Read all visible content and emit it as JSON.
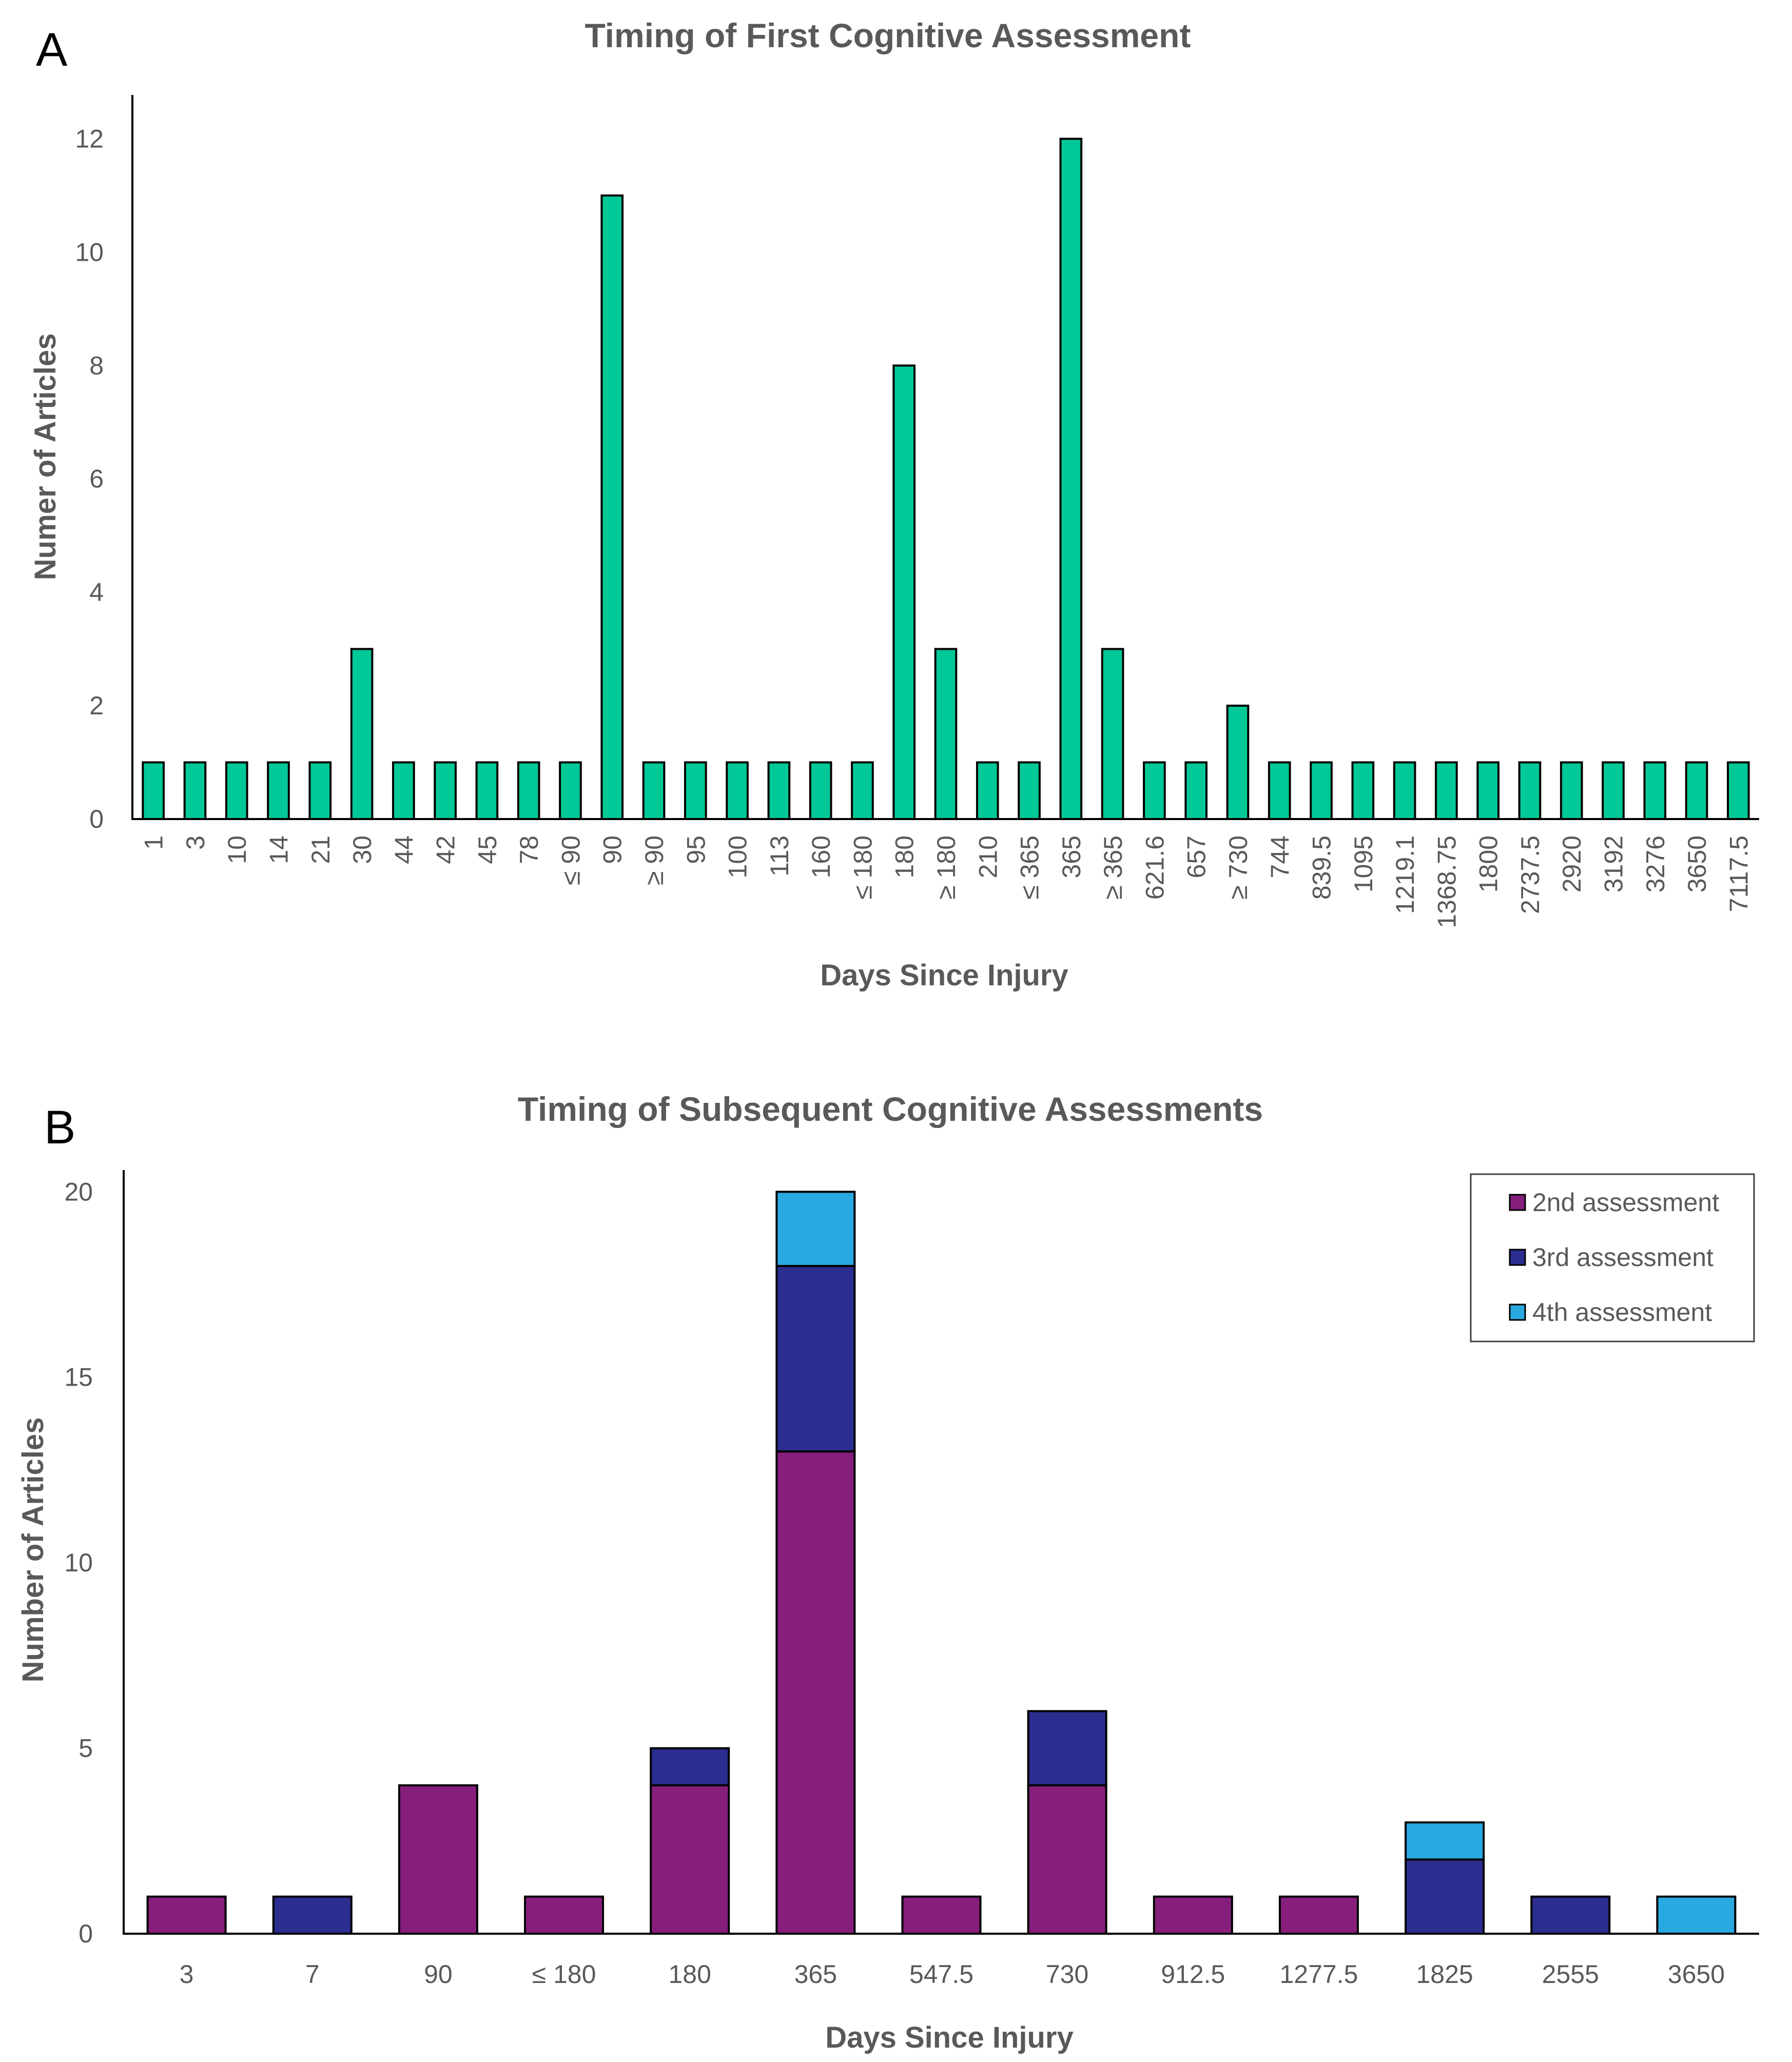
{
  "colors": {
    "panel_a_bar": "#00C896",
    "second_assessment": "#861F7C",
    "third_assessment": "#2B2D8F",
    "fourth_assessment": "#29A9E0",
    "text": "#595959"
  },
  "chart_data": [
    {
      "panel_label": "A",
      "type": "bar",
      "title": "Timing of First Cognitive Assessment",
      "xlabel": "Days Since Injury",
      "ylabel": "Numer of Articles",
      "ylim": [
        0,
        13
      ],
      "yticks": [
        0,
        2,
        4,
        6,
        8,
        10,
        12
      ],
      "categories": [
        "1",
        "3",
        "10",
        "14",
        "21",
        "30",
        "44",
        "42",
        "45",
        "78",
        "≤ 90",
        "90",
        "≥ 90",
        "95",
        "100",
        "113",
        "160",
        "≤ 180",
        "180",
        "≥ 180",
        "210",
        "≤ 365",
        "365",
        "≥ 365",
        "621.6",
        "657",
        "≥ 730",
        "744",
        "839.5",
        "1095",
        "1219.1",
        "1368.75",
        "1800",
        "2737.5",
        "2920",
        "3192",
        "3276",
        "3650",
        "7117.5"
      ],
      "values": [
        1,
        1,
        1,
        1,
        1,
        3,
        1,
        1,
        1,
        1,
        1,
        11,
        1,
        1,
        1,
        1,
        1,
        1,
        8,
        3,
        1,
        1,
        12,
        3,
        1,
        1,
        2,
        1,
        1,
        1,
        1,
        1,
        1,
        1,
        1,
        1,
        1,
        1,
        1
      ],
      "grid": false
    },
    {
      "panel_label": "B",
      "type": "bar",
      "stacked": true,
      "title": "Timing of Subsequent Cognitive Assessments",
      "xlabel": "Days Since Injury",
      "ylabel": "Number of Articles",
      "ylim": [
        0,
        21
      ],
      "yticks": [
        0,
        5,
        10,
        15,
        20
      ],
      "categories": [
        "3",
        "7",
        "90",
        "≤ 180",
        "180",
        "365",
        "547.5",
        "730",
        "912.5",
        "1277.5",
        "1825",
        "2555",
        "3650"
      ],
      "series": [
        {
          "name": "2nd assessment",
          "values": [
            1,
            0,
            4,
            1,
            4,
            13,
            1,
            4,
            1,
            1,
            0,
            0,
            0
          ]
        },
        {
          "name": "3rd assessment",
          "values": [
            0,
            1,
            0,
            0,
            1,
            5,
            0,
            2,
            0,
            0,
            2,
            1,
            0
          ]
        },
        {
          "name": "4th assessment",
          "values": [
            0,
            0,
            0,
            0,
            0,
            2,
            0,
            0,
            0,
            0,
            1,
            0,
            1
          ]
        }
      ],
      "legend_position": "top-right",
      "grid": false
    }
  ]
}
